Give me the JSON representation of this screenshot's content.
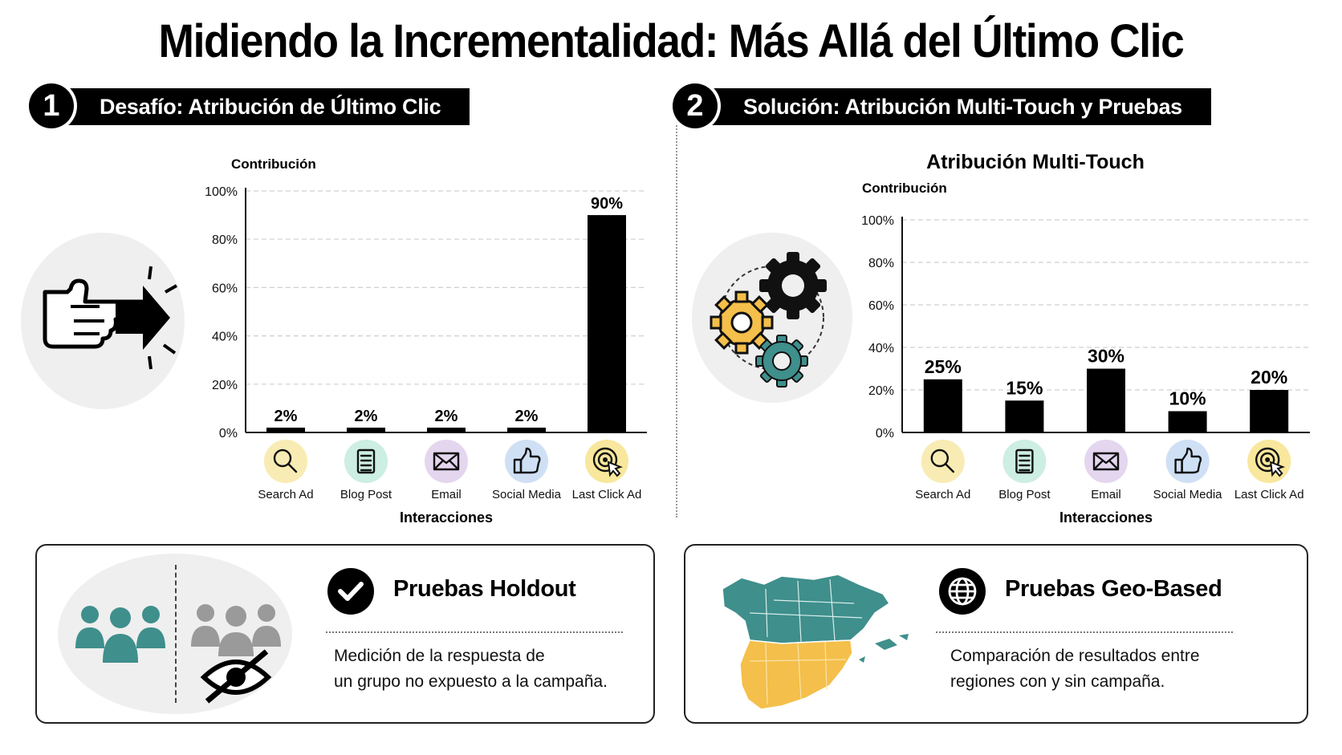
{
  "title": "Midiendo la Incrementalidad: Más Allá del Último Clic",
  "section1": {
    "number": "1",
    "label": "Desafío: Atribución de Último Clic"
  },
  "section2": {
    "number": "2",
    "label": "Solución: Atribución Multi-Touch y Pruebas"
  },
  "colors": {
    "search": "#f8ecb4",
    "blog": "#cdeee2",
    "email": "#e4d6ef",
    "social": "#cfe0f5",
    "lastclick": "#f8e79c",
    "teal": "#3f8f8c",
    "yellow": "#f4bf4a",
    "gray": "#9a9a9a"
  },
  "chart_data": [
    {
      "type": "bar",
      "title": "",
      "ylabel": "Contribución",
      "xlabel": "Interacciones",
      "ylim": [
        0,
        100
      ],
      "yticks": [
        "0%",
        "20%",
        "40%",
        "60%",
        "80%",
        "100%"
      ],
      "categories": [
        "Search Ad",
        "Blog Post",
        "Email",
        "Social Media",
        "Last Click Ad"
      ],
      "category_icons": [
        "magnifier-icon",
        "document-icon",
        "envelope-icon",
        "thumbs-up-icon",
        "target-cursor-icon"
      ],
      "values": [
        2,
        2,
        2,
        2,
        90
      ],
      "value_labels": [
        "2%",
        "2%",
        "2%",
        "2%",
        "90%"
      ],
      "grid": "horizontal-dashed"
    },
    {
      "type": "bar",
      "title": "Atribución Multi-Touch",
      "ylabel": "Contribución",
      "xlabel": "Interacciones",
      "ylim": [
        0,
        100
      ],
      "yticks": [
        "0%",
        "20%",
        "40%",
        "60%",
        "80%",
        "100%"
      ],
      "categories": [
        "Search Ad",
        "Blog Post",
        "Email",
        "Social Media",
        "Last Click Ad"
      ],
      "category_icons": [
        "magnifier-icon",
        "document-icon",
        "envelope-icon",
        "thumbs-up-icon",
        "target-cursor-icon"
      ],
      "values": [
        25,
        15,
        30,
        10,
        20
      ],
      "value_labels": [
        "25%",
        "15%",
        "30%",
        "10%",
        "20%"
      ],
      "grid": "horizontal-dashed"
    }
  ],
  "holdout": {
    "title": "Pruebas Holdout",
    "text_line1": "Medición de la respuesta de",
    "text_line2": "un grupo no expuesto a la campaña."
  },
  "geo": {
    "title": "Pruebas Geo-Based",
    "text_line1": "Comparación de resultados entre",
    "text_line2": "regiones con y sin campaña."
  }
}
